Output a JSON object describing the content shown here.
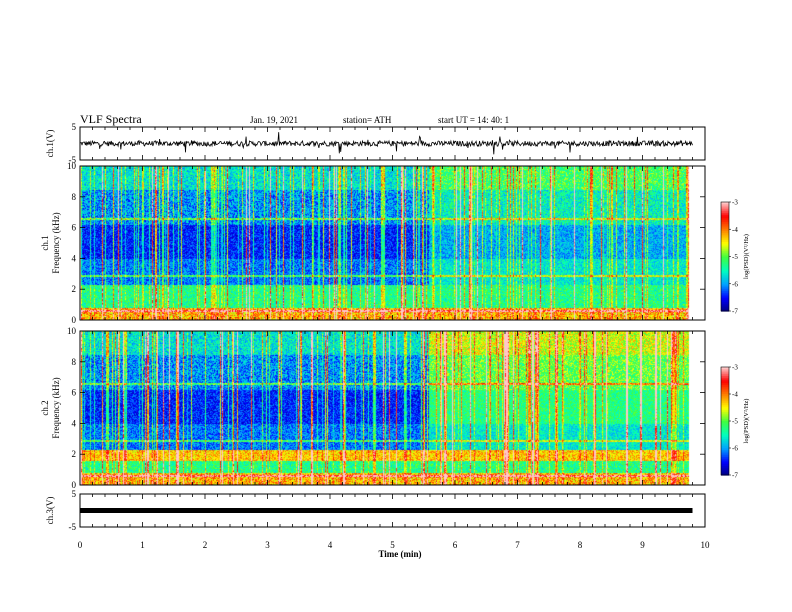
{
  "header": {
    "title": "VLF Spectra",
    "date": "Jan. 19, 2021",
    "station": "station= ATH",
    "start": "start  UT =   14: 40: 1"
  },
  "chart_data": [
    {
      "type": "line",
      "panel": "ch1-waveform",
      "ylabel": "ch.1(V)",
      "ylim": [
        -5,
        5
      ],
      "yticks": [
        "5",
        "-5"
      ],
      "xlim": [
        0,
        10
      ],
      "description_values": {
        "baseline": 0,
        "noise_amplitude": 0.8
      }
    },
    {
      "type": "heatmap",
      "panel": "ch1-spectrogram",
      "ylabel": "ch.1\nFrequency (kHz)",
      "ylim": [
        0,
        10
      ],
      "yticks": [
        "0",
        "2",
        "4",
        "6",
        "8",
        "10"
      ],
      "xlim": [
        0,
        10
      ],
      "data_end_min": 9.8,
      "colorbar": {
        "label": "log(PSD)(V²/Hz)",
        "range": [
          -7,
          -3
        ],
        "ticks": [
          "-3",
          "-4",
          "-5",
          "-6",
          "-7"
        ]
      }
    },
    {
      "type": "heatmap",
      "panel": "ch2-spectrogram",
      "ylabel": "ch.2\nFrequency (kHz)",
      "ylim": [
        0,
        10
      ],
      "yticks": [
        "0",
        "2",
        "4",
        "6",
        "8",
        "10"
      ],
      "xlim": [
        0,
        10
      ],
      "data_end_min": 9.8,
      "colorbar": {
        "label": "log(PSD)(V²/Hz)",
        "range": [
          -7,
          -3
        ],
        "ticks": [
          "-3",
          "-4",
          "-5",
          "-6",
          "-7"
        ]
      }
    },
    {
      "type": "line",
      "panel": "ch3-waveform",
      "ylabel": "ch.3(V)",
      "ylim": [
        -5,
        5
      ],
      "yticks": [
        "5",
        "-5"
      ],
      "xlim": [
        0,
        10
      ],
      "description_values": {
        "baseline": 0
      }
    }
  ],
  "xaxis": {
    "label": "Time  (min)",
    "ticks": [
      "0",
      "1",
      "2",
      "3",
      "4",
      "5",
      "6",
      "7",
      "8",
      "9",
      "10"
    ]
  },
  "colors": {
    "scale": [
      "#00007a",
      "#0000ff",
      "#00a0ff",
      "#00ffc0",
      "#40ff40",
      "#ffff00",
      "#ff8000",
      "#ff0000",
      "#ffc8c8"
    ]
  }
}
